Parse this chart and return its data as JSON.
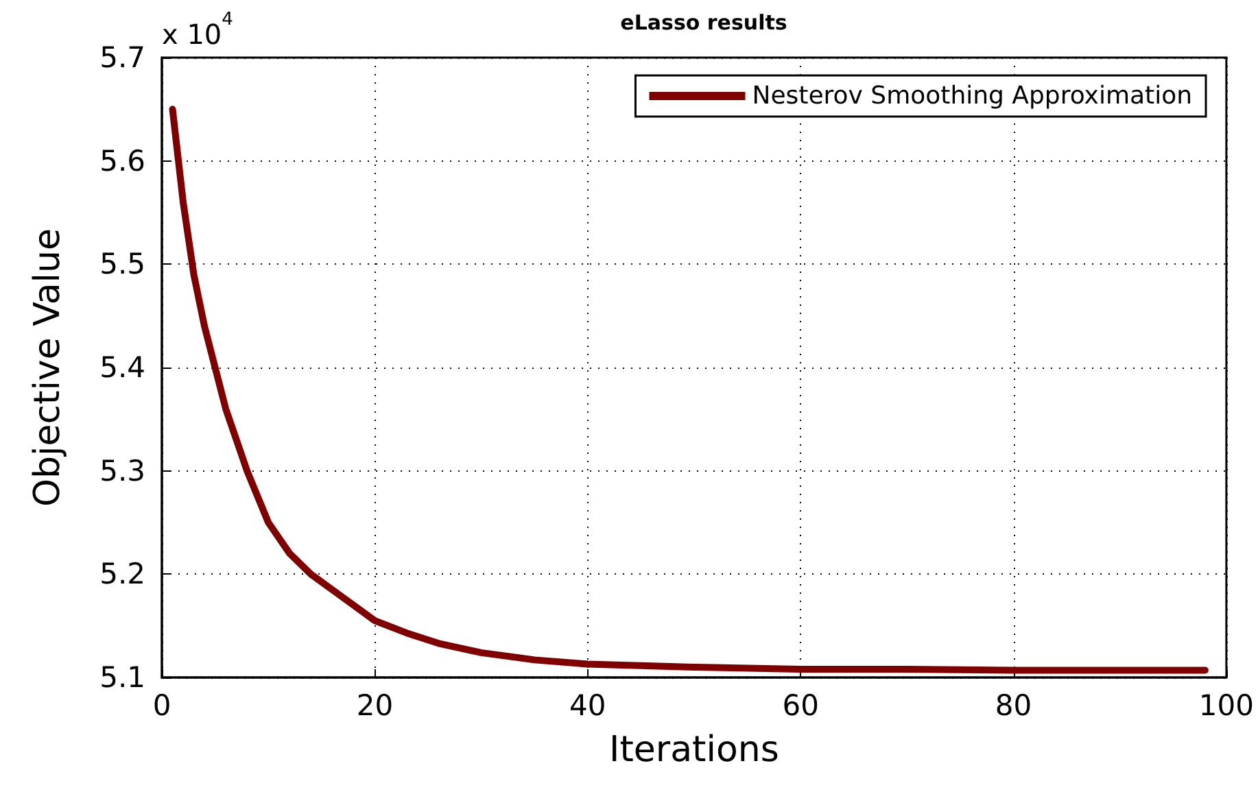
{
  "chart_data": {
    "type": "line",
    "title": "eLasso results",
    "xlabel": "Iterations",
    "ylabel": "Objective Value",
    "annotations": [
      "x 10$^{4}$"
    ],
    "xlim": [
      0,
      100
    ],
    "xticks": [
      0,
      20,
      40,
      60,
      80,
      100
    ],
    "ylim": [
      5.1,
      5.7
    ],
    "yticks": [
      5.1,
      5.2,
      5.3,
      5.4,
      5.5,
      5.6,
      5.7
    ],
    "grid": true,
    "legend": "top right",
    "marker": "none",
    "line_style": "solid",
    "series": [
      {
        "name": "Nesterov Smoothing Approximation",
        "color": "#800000",
        "x": [
          1,
          2,
          3,
          4,
          5,
          6,
          7,
          8,
          10,
          12,
          14,
          16,
          18,
          20,
          23,
          26,
          30,
          35,
          40,
          50,
          60,
          70,
          80,
          90,
          98
        ],
        "values": [
          5.65,
          5.56,
          5.49,
          5.44,
          5.4,
          5.36,
          5.33,
          5.3,
          5.25,
          5.22,
          5.2,
          5.185,
          5.17,
          5.155,
          5.143,
          5.133,
          5.124,
          5.117,
          5.113,
          5.11,
          5.108,
          5.108,
          5.107,
          5.107,
          5.107
        ]
      }
    ]
  }
}
